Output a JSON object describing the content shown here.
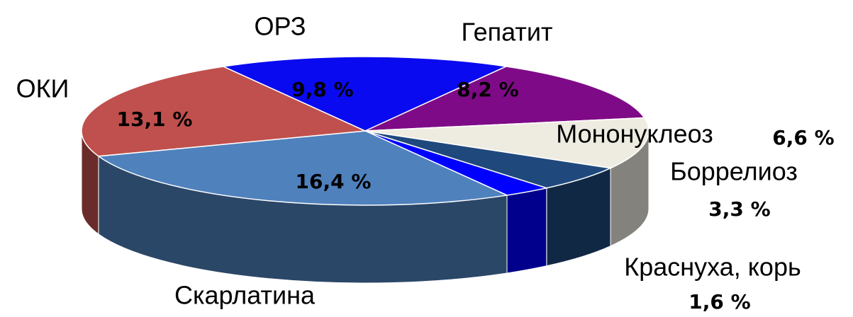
{
  "chart_data": {
    "type": "pie3d",
    "categories": [
      "ОРЗ",
      "Гепатит",
      "Мононуклеоз",
      "Боррелиоз",
      "Краснуха, корь",
      "Скарлатина",
      "ОКИ"
    ],
    "values": [
      9.8,
      8.2,
      6.6,
      3.3,
      1.6,
      16.4,
      13.1
    ],
    "value_labels": [
      "9,8 %",
      "8,2  %",
      "6,6 %",
      "3,3 %",
      "1,6 %",
      "16,4 %",
      "13,1 %"
    ],
    "colors": [
      "#0a0af0",
      "#7f0a87",
      "#eeece1",
      "#1f497d",
      "#0000ff",
      "#4f81bd",
      "#c0504d"
    ]
  }
}
